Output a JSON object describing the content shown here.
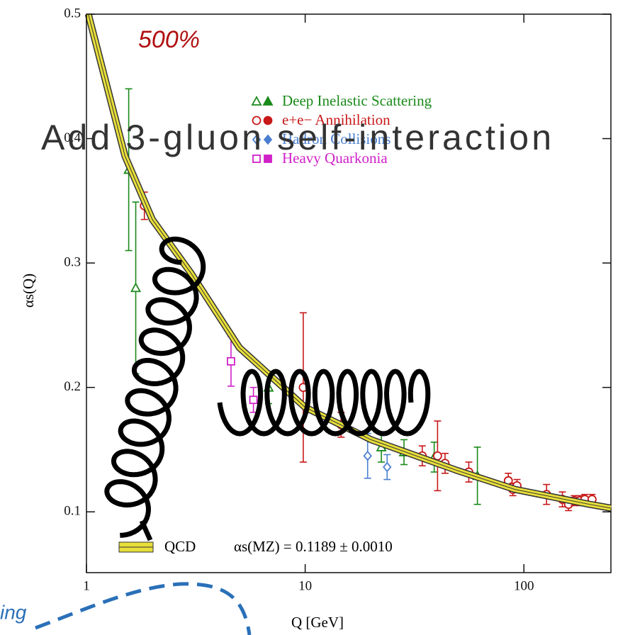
{
  "chart_data": {
    "type": "scatter",
    "xlabel": "Q [GeV]",
    "ylabel": "αs(Q)",
    "xscale": "log",
    "xlim": [
      1,
      250
    ],
    "ylim": [
      0.05,
      0.5
    ],
    "xticks": [
      1,
      10,
      100
    ],
    "yticks": [
      0.1,
      0.2,
      0.3,
      0.4,
      0.5
    ],
    "legend": "upper right",
    "series": [
      {
        "name": "Deep Inelastic Scattering",
        "color": "#1a8a1a",
        "marker": "triangle",
        "x": [
          1.56,
          1.68,
          6.8,
          22.3,
          28.3,
          38.9,
          61.3
        ],
        "values": [
          0.375,
          0.28,
          0.2,
          0.152,
          0.148,
          0.144,
          0.129
        ],
        "errors": [
          0.065,
          0.069,
          0.013,
          0.012,
          0.01,
          0.012,
          0.023
        ]
      },
      {
        "name": "e+e− Annihilation",
        "color": "#c81818",
        "marker": "circle",
        "x": [
          1.84,
          9.8,
          14.6,
          34.3,
          40.3,
          43.6,
          56,
          84.9,
          89,
          93,
          127,
          150,
          160,
          170,
          180,
          190,
          205
        ],
        "values": [
          0.346,
          0.2,
          0.17,
          0.145,
          0.145,
          0.139,
          0.132,
          0.125,
          0.118,
          0.121,
          0.114,
          0.11,
          0.106,
          0.109,
          0.109,
          0.11,
          0.11
        ],
        "errors": [
          0.011,
          0.06,
          0.01,
          0.008,
          0.028,
          0.008,
          0.008,
          0.006,
          0.005,
          0.005,
          0.008,
          0.006,
          0.005,
          0.004,
          0.004,
          0.004,
          0.004
        ]
      },
      {
        "name": "Hadron Collisions",
        "color": "#4a7fd0",
        "marker": "diamond",
        "x": [
          19.3,
          23.7
        ],
        "values": [
          0.145,
          0.136
        ],
        "errors": [
          0.018,
          0.01
        ]
      },
      {
        "name": "Heavy Quarkonia",
        "color": "#d020c8",
        "marker": "square",
        "x": [
          4.58,
          5.8
        ],
        "values": [
          0.221,
          0.19
        ],
        "errors": [
          0.02,
          0.01
        ]
      },
      {
        "name": "QCD",
        "color": "#e8df3a",
        "marker": "band",
        "x": [
          1.02,
          1.5,
          2,
          3,
          5,
          10,
          20,
          50,
          91.2,
          200,
          250
        ],
        "values": [
          0.5,
          0.386,
          0.335,
          0.292,
          0.232,
          0.184,
          0.158,
          0.133,
          0.118,
          0.106,
          0.103
        ]
      }
    ],
    "annotations": [
      "αs(MZ) = 0.1189 ± 0.0010"
    ]
  },
  "overlays": {
    "percent": "500%",
    "caption": "Add 3-gluon self-interaction",
    "fragment": "ing"
  }
}
